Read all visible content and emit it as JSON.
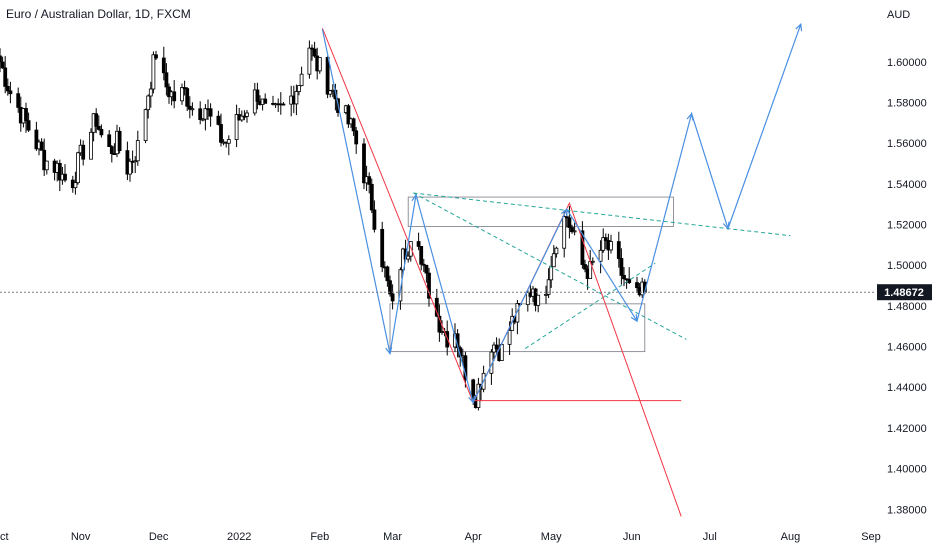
{
  "chart_data": {
    "type": "candlestick",
    "title": "Euro / Australian Dollar, 1D, FXCM",
    "currency_label": "AUD",
    "last_price_label": "1.48672",
    "last_price": 1.48672,
    "y_ticks": [
      1.38,
      1.4,
      1.42,
      1.44,
      1.46,
      1.48,
      1.5,
      1.52,
      1.54,
      1.56,
      1.58,
      1.6
    ],
    "y_tick_labels": [
      "1.38000",
      "1.40000",
      "1.42000",
      "1.44000",
      "1.46000",
      "1.48000",
      "1.50000",
      "1.52000",
      "1.54000",
      "1.56000",
      "1.58000",
      "1.60000"
    ],
    "x_ticks": [
      {
        "label": "Oct",
        "day": 0
      },
      {
        "label": "Nov",
        "day": 31
      },
      {
        "label": "Dec",
        "day": 61
      },
      {
        "label": "2022",
        "day": 92
      },
      {
        "label": "Feb",
        "day": 123
      },
      {
        "label": "Mar",
        "day": 151
      },
      {
        "label": "Apr",
        "day": 182
      },
      {
        "label": "May",
        "day": 212
      },
      {
        "label": "Jun",
        "day": 243
      },
      {
        "label": "Jul",
        "day": 273
      },
      {
        "label": "Aug",
        "day": 304
      },
      {
        "label": "Sep",
        "day": 335
      }
    ],
    "anchors": [
      [
        0,
        1.6
      ],
      [
        4,
        1.585
      ],
      [
        8,
        1.575
      ],
      [
        12,
        1.565
      ],
      [
        17,
        1.552
      ],
      [
        22,
        1.548
      ],
      [
        27,
        1.538
      ],
      [
        30,
        1.55
      ],
      [
        33,
        1.56
      ],
      [
        37,
        1.572
      ],
      [
        41,
        1.555
      ],
      [
        45,
        1.56
      ],
      [
        49,
        1.548
      ],
      [
        53,
        1.558
      ],
      [
        57,
        1.585
      ],
      [
        60,
        1.605
      ],
      [
        63,
        1.59
      ],
      [
        67,
        1.582
      ],
      [
        71,
        1.585
      ],
      [
        75,
        1.575
      ],
      [
        79,
        1.578
      ],
      [
        83,
        1.565
      ],
      [
        87,
        1.56
      ],
      [
        91,
        1.57
      ],
      [
        95,
        1.578
      ],
      [
        99,
        1.585
      ],
      [
        103,
        1.572
      ],
      [
        107,
        1.575
      ],
      [
        111,
        1.58
      ],
      [
        115,
        1.59
      ],
      [
        118,
        1.612
      ],
      [
        121,
        1.6
      ],
      [
        124,
        1.595
      ],
      [
        128,
        1.585
      ],
      [
        132,
        1.575
      ],
      [
        136,
        1.565
      ],
      [
        140,
        1.545
      ],
      [
        143,
        1.53
      ],
      [
        146,
        1.51
      ],
      [
        149,
        1.49
      ],
      [
        151,
        1.478
      ],
      [
        153,
        1.498
      ],
      [
        157,
        1.51
      ],
      [
        160,
        1.53
      ],
      [
        162,
        1.5
      ],
      [
        165,
        1.488
      ],
      [
        168,
        1.475
      ],
      [
        172,
        1.465
      ],
      [
        175,
        1.468
      ],
      [
        178,
        1.452
      ],
      [
        181,
        1.44
      ],
      [
        183,
        1.436
      ],
      [
        186,
        1.448
      ],
      [
        189,
        1.462
      ],
      [
        193,
        1.458
      ],
      [
        197,
        1.472
      ],
      [
        201,
        1.48
      ],
      [
        205,
        1.49
      ],
      [
        208,
        1.476
      ],
      [
        211,
        1.498
      ],
      [
        213,
        1.508
      ],
      [
        215,
        1.52
      ],
      [
        218,
        1.524
      ],
      [
        221,
        1.512
      ],
      [
        224,
        1.5
      ],
      [
        227,
        1.497
      ],
      [
        230,
        1.506
      ],
      [
        233,
        1.51
      ],
      [
        236,
        1.504
      ],
      [
        239,
        1.496
      ],
      [
        242,
        1.488
      ],
      [
        245,
        1.484
      ],
      [
        248,
        1.4867
      ]
    ],
    "annotations": {
      "horizontal_line_price": 1.4334,
      "rect_upper": {
        "x0": 157,
        "x1": 259,
        "y_top": 1.5335,
        "y_bot": 1.519
      },
      "rect_lower": {
        "x0": 150,
        "x1": 248,
        "y_top": 1.481,
        "y_bot": 1.4575
      },
      "blue_zigzag": [
        [
          124,
          1.616
        ],
        [
          150,
          1.4565
        ],
        [
          160,
          1.5345
        ],
        [
          182,
          1.4325
        ],
        [
          218,
          1.5275
        ],
        [
          245,
          1.4725
        ]
      ],
      "blue_projection": [
        [
          245,
          1.4725
        ],
        [
          266,
          1.5745
        ],
        [
          280,
          1.518
        ],
        [
          308,
          1.6185
        ]
      ],
      "red_path": [
        [
          124,
          1.6165
        ],
        [
          182,
          1.4325
        ],
        [
          219,
          1.5305
        ],
        [
          262,
          1.3765
        ]
      ],
      "dashed_trendlines": [
        [
          [
            159,
            1.5355
          ],
          [
            304,
            1.5145
          ]
        ],
        [
          [
            159,
            1.5355
          ],
          [
            264,
            1.4635
          ]
        ],
        [
          [
            202,
            1.459
          ],
          [
            252,
            1.501
          ]
        ]
      ]
    }
  }
}
